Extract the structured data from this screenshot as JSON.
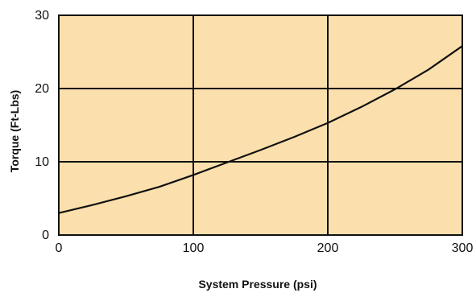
{
  "colors": {
    "plot_background": "#fbe0ad",
    "grid": "#111111",
    "curve": "#111111",
    "frame": "#111111"
  },
  "chart_data": {
    "type": "line",
    "title": "",
    "xlabel": "System Pressure (psi)",
    "ylabel": "Torque  (Ft-Lbs)",
    "xlim": [
      0,
      300
    ],
    "ylim": [
      0,
      30
    ],
    "x_ticks": [
      0,
      100,
      200,
      300
    ],
    "y_ticks": [
      0,
      10,
      20,
      30
    ],
    "x_tick_labels": [
      "0",
      "100",
      "200",
      "300"
    ],
    "y_tick_labels": [
      "0",
      "10",
      "20",
      "30"
    ],
    "grid": true,
    "legend": "none",
    "series": [
      {
        "x": [
          0,
          25,
          50,
          75,
          100,
          125,
          150,
          175,
          200,
          225,
          250,
          275,
          300
        ],
        "y": [
          3.0,
          4.1,
          5.3,
          6.6,
          8.2,
          9.9,
          11.6,
          13.4,
          15.3,
          17.5,
          19.9,
          22.6,
          25.8
        ]
      }
    ]
  }
}
